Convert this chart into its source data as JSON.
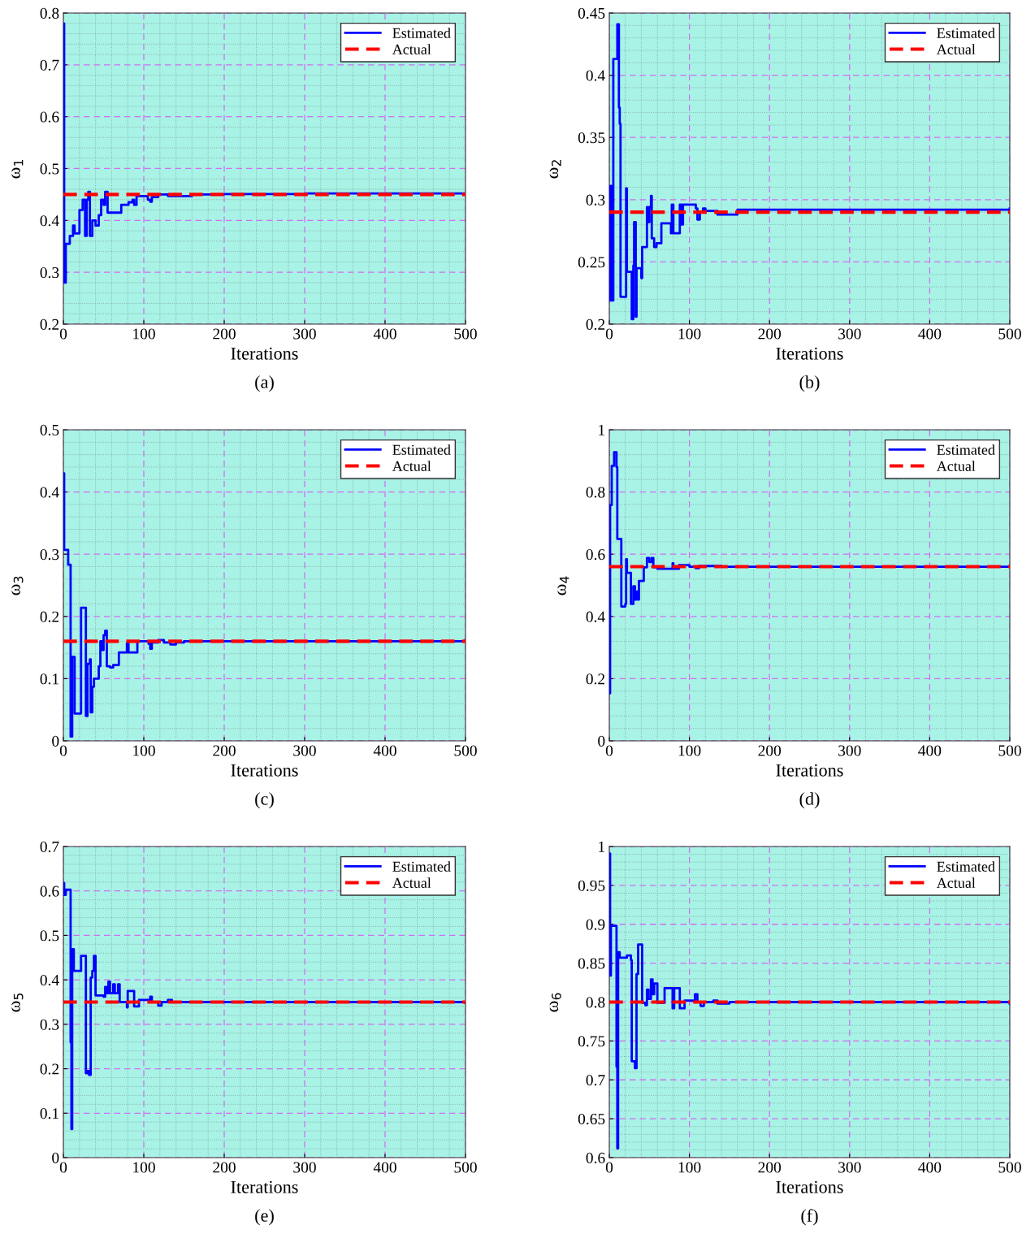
{
  "chart_data": [
    {
      "type": "line",
      "title": "(a)",
      "xlabel": "Iterations",
      "ylabel": "ω$_{1}$",
      "xlim": [
        0,
        500
      ],
      "xticks": [
        0,
        100,
        200,
        300,
        400,
        500
      ],
      "ylim": [
        0.2,
        0.8
      ],
      "yticks": [
        0.2,
        0.3,
        0.4,
        0.5,
        0.6,
        0.7,
        0.8
      ],
      "grid": true,
      "legend": "top right",
      "series": [
        {
          "name": "Estimated",
          "type": "step",
          "color": "#0000ff",
          "line_style": "solid",
          "x": [
            0,
            1,
            3,
            8,
            12,
            14,
            20,
            24,
            27,
            29,
            31,
            33,
            36,
            40,
            44,
            47,
            50,
            52,
            55,
            70,
            72,
            79,
            81,
            86,
            88,
            91,
            100,
            105,
            108,
            110,
            118,
            130,
            145,
            160,
            200,
            300,
            500
          ],
          "values": [
            0.78,
            0.28,
            0.355,
            0.37,
            0.39,
            0.375,
            0.42,
            0.44,
            0.37,
            0.44,
            0.455,
            0.37,
            0.4,
            0.39,
            0.41,
            0.44,
            0.43,
            0.455,
            0.415,
            0.415,
            0.43,
            0.43,
            0.435,
            0.44,
            0.43,
            0.447,
            0.447,
            0.44,
            0.436,
            0.445,
            0.45,
            0.447,
            0.447,
            0.45,
            0.451,
            0.452,
            0.452
          ]
        },
        {
          "name": "Actual",
          "color": "#ff0000",
          "line_style": "dashed",
          "x": [
            0,
            500
          ],
          "values": [
            0.45,
            0.45
          ]
        }
      ]
    },
    {
      "type": "line",
      "title": "(b)",
      "xlabel": "Iterations",
      "ylabel": "ω$_{2}$",
      "xlim": [
        0,
        500
      ],
      "xticks": [
        0,
        100,
        200,
        300,
        400,
        500
      ],
      "ylim": [
        0.2,
        0.45
      ],
      "yticks": [
        0.2,
        0.25,
        0.3,
        0.35,
        0.4,
        0.45
      ],
      "grid": true,
      "legend": "top right",
      "series": [
        {
          "name": "Estimated",
          "type": "step",
          "color": "#0000ff",
          "line_style": "solid",
          "x": [
            0,
            1,
            2,
            3,
            5,
            10,
            12,
            13,
            14,
            20,
            21,
            22,
            26,
            28,
            30,
            31,
            33,
            34,
            37,
            40,
            41,
            45,
            47,
            48,
            50,
            52,
            53,
            56,
            59,
            63,
            65,
            75,
            77,
            78,
            80,
            86,
            88,
            90,
            92,
            100,
            108,
            110,
            113,
            117,
            120,
            135,
            150,
            160,
            170,
            200,
            500
          ],
          "values": [
            0.311,
            0.219,
            0.311,
            0.219,
            0.413,
            0.441,
            0.374,
            0.361,
            0.222,
            0.222,
            0.309,
            0.242,
            0.242,
            0.204,
            0.247,
            0.282,
            0.206,
            0.245,
            0.245,
            0.237,
            0.262,
            0.262,
            0.294,
            0.282,
            0.294,
            0.303,
            0.269,
            0.262,
            0.265,
            0.265,
            0.281,
            0.281,
            0.273,
            0.296,
            0.273,
            0.273,
            0.296,
            0.28,
            0.296,
            0.296,
            0.293,
            0.284,
            0.29,
            0.293,
            0.291,
            0.288,
            0.288,
            0.292,
            0.292,
            0.292,
            0.293
          ]
        },
        {
          "name": "Actual",
          "color": "#ff0000",
          "line_style": "dashed",
          "x": [
            0,
            500
          ],
          "values": [
            0.29,
            0.29
          ]
        }
      ]
    },
    {
      "type": "line",
      "title": "(c)",
      "xlabel": "Iterations",
      "ylabel": "ω$_{3}$",
      "xlim": [
        0,
        500
      ],
      "xticks": [
        0,
        100,
        200,
        300,
        400,
        500
      ],
      "ylim": [
        0,
        0.5
      ],
      "yticks": [
        0,
        0.1,
        0.2,
        0.3,
        0.4,
        0.5
      ],
      "grid": true,
      "legend": "top right",
      "series": [
        {
          "name": "Estimated",
          "type": "step",
          "color": "#0000ff",
          "line_style": "solid",
          "x": [
            0,
            1,
            5,
            6,
            8,
            9,
            11,
            13,
            14,
            20,
            22,
            27,
            28,
            30,
            33,
            34,
            36,
            38,
            42,
            44,
            46,
            48,
            50,
            52,
            54,
            58,
            62,
            69,
            78,
            79,
            81,
            90,
            92,
            100,
            106,
            108,
            110,
            118,
            125,
            133,
            140,
            150,
            500
          ],
          "values": [
            0.43,
            0.307,
            0.307,
            0.283,
            0.283,
            0.007,
            0.135,
            0.135,
            0.044,
            0.044,
            0.214,
            0.214,
            0.04,
            0.124,
            0.131,
            0.046,
            0.087,
            0.1,
            0.1,
            0.12,
            0.16,
            0.146,
            0.17,
            0.177,
            0.12,
            0.118,
            0.122,
            0.142,
            0.142,
            0.157,
            0.142,
            0.142,
            0.16,
            0.16,
            0.156,
            0.148,
            0.158,
            0.162,
            0.158,
            0.155,
            0.158,
            0.16,
            0.162
          ]
        },
        {
          "name": "Actual",
          "color": "#ff0000",
          "line_style": "dashed",
          "x": [
            0,
            500
          ],
          "values": [
            0.16,
            0.16
          ]
        }
      ]
    },
    {
      "type": "line",
      "title": "(d)",
      "xlabel": "Iterations",
      "ylabel": "ω$_{4}$",
      "xlim": [
        0,
        500
      ],
      "xticks": [
        0,
        100,
        200,
        300,
        400,
        500
      ],
      "ylim": [
        0,
        1
      ],
      "yticks": [
        0,
        0.2,
        0.4,
        0.6,
        0.8,
        1
      ],
      "grid": true,
      "legend": "top right",
      "series": [
        {
          "name": "Estimated",
          "type": "step",
          "color": "#0000ff",
          "line_style": "solid",
          "x": [
            0,
            1,
            3,
            6,
            9,
            10,
            13,
            15,
            20,
            21,
            22,
            26,
            27,
            30,
            32,
            34,
            36,
            37,
            42,
            43,
            46,
            47,
            50,
            53,
            55,
            60,
            78,
            79,
            80,
            85,
            87,
            95,
            100,
            108,
            112,
            140,
            500
          ],
          "values": [
            0.153,
            0.758,
            0.884,
            0.928,
            0.88,
            0.649,
            0.649,
            0.432,
            0.44,
            0.584,
            0.54,
            0.54,
            0.44,
            0.497,
            0.454,
            0.48,
            0.454,
            0.514,
            0.514,
            0.558,
            0.558,
            0.588,
            0.575,
            0.588,
            0.558,
            0.553,
            0.553,
            0.571,
            0.553,
            0.553,
            0.565,
            0.565,
            0.56,
            0.555,
            0.562,
            0.56,
            0.561
          ]
        },
        {
          "name": "Actual",
          "color": "#ff0000",
          "line_style": "dashed",
          "x": [
            0,
            500
          ],
          "values": [
            0.56,
            0.56
          ]
        }
      ]
    },
    {
      "type": "line",
      "title": "(e)",
      "xlabel": "Iterations",
      "ylabel": "ω$_{5}$",
      "xlim": [
        0,
        500
      ],
      "xticks": [
        0,
        100,
        200,
        300,
        400,
        500
      ],
      "ylim": [
        0,
        0.7
      ],
      "yticks": [
        0,
        0.1,
        0.2,
        0.3,
        0.4,
        0.5,
        0.6,
        0.7
      ],
      "grid": true,
      "legend": "top right",
      "series": [
        {
          "name": "Estimated",
          "type": "step",
          "color": "#0000ff",
          "line_style": "solid",
          "x": [
            0,
            1,
            3,
            8,
            9,
            10,
            11,
            13,
            20,
            22,
            27,
            28,
            30,
            32,
            34,
            36,
            38,
            40,
            50,
            52,
            54,
            56,
            58,
            62,
            64,
            68,
            70,
            78,
            79,
            80,
            86,
            88,
            92,
            94,
            105,
            108,
            110,
            118,
            122,
            130,
            135,
            500
          ],
          "values": [
            0.618,
            0.591,
            0.603,
            0.603,
            0.259,
            0.064,
            0.469,
            0.42,
            0.42,
            0.454,
            0.454,
            0.19,
            0.195,
            0.186,
            0.405,
            0.42,
            0.454,
            0.365,
            0.362,
            0.384,
            0.37,
            0.396,
            0.37,
            0.39,
            0.37,
            0.39,
            0.35,
            0.35,
            0.338,
            0.375,
            0.375,
            0.34,
            0.34,
            0.355,
            0.355,
            0.362,
            0.35,
            0.342,
            0.35,
            0.355,
            0.35,
            0.348
          ]
        },
        {
          "name": "Actual",
          "color": "#ff0000",
          "line_style": "dashed",
          "x": [
            0,
            500
          ],
          "values": [
            0.35,
            0.35
          ]
        }
      ]
    },
    {
      "type": "line",
      "title": "(f)",
      "xlabel": "Iterations",
      "ylabel": "ω$_{6}$",
      "xlim": [
        0,
        500
      ],
      "xticks": [
        0,
        100,
        200,
        300,
        400,
        500
      ],
      "ylim": [
        0.6,
        1
      ],
      "yticks": [
        0.6,
        0.65,
        0.7,
        0.75,
        0.8,
        0.85,
        0.9,
        0.95,
        1
      ],
      "grid": true,
      "legend": "top right",
      "series": [
        {
          "name": "Estimated",
          "type": "step",
          "color": "#0000ff",
          "line_style": "solid",
          "x": [
            0,
            1,
            2,
            8,
            9,
            10,
            11,
            13,
            20,
            22,
            27,
            28,
            32,
            34,
            36,
            40,
            41,
            45,
            47,
            49,
            52,
            54,
            56,
            58,
            60,
            68,
            69,
            78,
            79,
            81,
            86,
            88,
            92,
            94,
            105,
            107,
            110,
            114,
            118,
            130,
            135,
            150,
            500
          ],
          "values": [
            0.991,
            0.834,
            0.898,
            0.898,
            0.717,
            0.612,
            0.864,
            0.857,
            0.857,
            0.86,
            0.854,
            0.724,
            0.715,
            0.836,
            0.874,
            0.874,
            0.799,
            0.796,
            0.816,
            0.804,
            0.829,
            0.81,
            0.824,
            0.824,
            0.799,
            0.799,
            0.818,
            0.818,
            0.792,
            0.818,
            0.818,
            0.792,
            0.792,
            0.802,
            0.802,
            0.81,
            0.8,
            0.795,
            0.8,
            0.802,
            0.798,
            0.8,
            0.798
          ]
        },
        {
          "name": "Actual",
          "color": "#ff0000",
          "line_style": "dashed",
          "x": [
            0,
            500
          ],
          "values": [
            0.8,
            0.8
          ]
        }
      ]
    }
  ]
}
